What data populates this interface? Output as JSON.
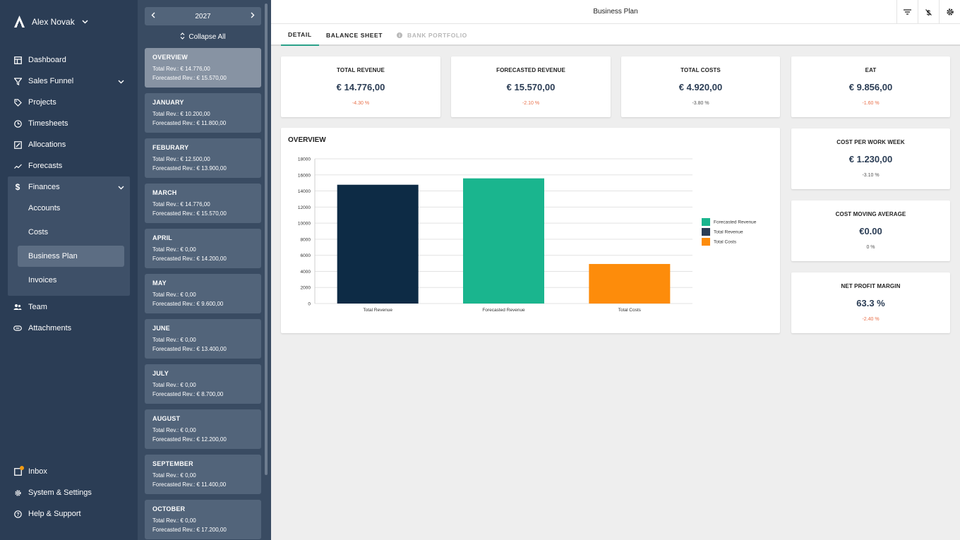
{
  "user": {
    "name": "Alex Novak"
  },
  "nav": {
    "dashboard": "Dashboard",
    "sales_funnel": "Sales Funnel",
    "projects": "Projects",
    "timesheets": "Timesheets",
    "allocations": "Allocations",
    "forecasts": "Forecasts",
    "finances": "Finances",
    "finances_sub": [
      "Accounts",
      "Costs",
      "Business Plan",
      "Invoices"
    ],
    "team": "Team",
    "attachments": "Attachments",
    "inbox": "Inbox",
    "settings": "System & Settings",
    "help": "Help & Support"
  },
  "month_panel": {
    "year": "2027",
    "collapse_label": "Collapse All",
    "cards": [
      {
        "name": "OVERVIEW",
        "total": "Total Rev.:  € 14.776,00",
        "forecast": "Forecasted Rev.:  € 15.570,00"
      },
      {
        "name": "JANUARY",
        "total": "Total Rev.:  € 10.200,00",
        "forecast": "Forecasted Rev.:  € 11.800,00"
      },
      {
        "name": "FEBURARY",
        "total": "Total Rev.:  € 12.500,00",
        "forecast": "Forecasted Rev.:  € 13.900,00"
      },
      {
        "name": "MARCH",
        "total": "Total Rev.:  € 14.776,00",
        "forecast": "Forecasted Rev.:  € 15.570,00"
      },
      {
        "name": "APRIL",
        "total": "Total Rev.:  € 0,00",
        "forecast": "Forecasted Rev.:  € 14.200,00"
      },
      {
        "name": "MAY",
        "total": "Total Rev.:  € 0,00",
        "forecast": "Forecasted Rev.:  € 9.600,00"
      },
      {
        "name": "JUNE",
        "total": "Total Rev.:  € 0,00",
        "forecast": "Forecasted Rev.:  € 13.400,00"
      },
      {
        "name": "JULY",
        "total": "Total Rev.:  € 0,00",
        "forecast": "Forecasted Rev.:  € 8.700,00"
      },
      {
        "name": "AUGUST",
        "total": "Total Rev.:  € 0,00",
        "forecast": "Forecasted Rev.:  € 12.200,00"
      },
      {
        "name": "SEPTEMBER",
        "total": "Total Rev.:  € 0,00",
        "forecast": "Forecasted Rev.:  € 11.400,00"
      },
      {
        "name": "OCTOBER",
        "total": "Total Rev.:  € 0,00",
        "forecast": "Forecasted Rev.:  € 17.200,00"
      }
    ]
  },
  "header": {
    "title": "Business Plan"
  },
  "tabs": [
    "DETAIL",
    "BALANCE SHEET",
    "BANK PORTFOLIO"
  ],
  "kpis": [
    {
      "title": "TOTAL REVENUE",
      "value": "€ 14.776,00",
      "delta": "-4.30 %",
      "delta_color": "#e8704a"
    },
    {
      "title": "FORECASTED REVENUE",
      "value": "€ 15.570,00",
      "delta": "-2.10 %",
      "delta_color": "#e8704a"
    },
    {
      "title": "TOTAL COSTS",
      "value": "€ 4.920,00",
      "delta": "-3.80 %",
      "delta_color": "#555555"
    },
    {
      "title": "EAT",
      "value": "€ 9.856,00",
      "delta": "-1.60 %",
      "delta_color": "#e8704a"
    }
  ],
  "side_kpis": [
    {
      "title": "COST PER WORK WEEK",
      "value": "€ 1.230,00",
      "delta": "-3.10 %",
      "delta_color": "#555555"
    },
    {
      "title": "COST MOVING AVERAGE",
      "value": "€0.00",
      "delta": "0 %",
      "delta_color": "#555555"
    },
    {
      "title": "NET PROFIT MARGIN",
      "value": "63.3 %",
      "delta": "-2.40 %",
      "delta_color": "#e8704a"
    }
  ],
  "overview": {
    "title": "OVERVIEW"
  },
  "colors": {
    "total_revenue": "#0d2b45",
    "forecasted_revenue": "#1ab58e",
    "total_costs": "#fd8c0b",
    "accent": "#2aa189"
  },
  "chart_data": {
    "type": "bar",
    "categories": [
      "Total Revenue",
      "Forecasted Revenue",
      "Total Costs"
    ],
    "values": [
      14776,
      15570,
      4920
    ],
    "bar_colors": [
      "#0d2b45",
      "#1ab58e",
      "#fd8c0b"
    ],
    "ylim": [
      0,
      18000
    ],
    "yticks": [
      0,
      2000,
      4000,
      6000,
      8000,
      10000,
      12000,
      14000,
      16000,
      18000
    ],
    "legend": [
      {
        "label": "Forecasted Revenue",
        "color": "#1ab58e"
      },
      {
        "label": "Total Revenue",
        "color": "#2b3d55"
      },
      {
        "label": "Total Costs",
        "color": "#fd8c0b"
      }
    ],
    "legend_position": "right",
    "grid": true
  }
}
